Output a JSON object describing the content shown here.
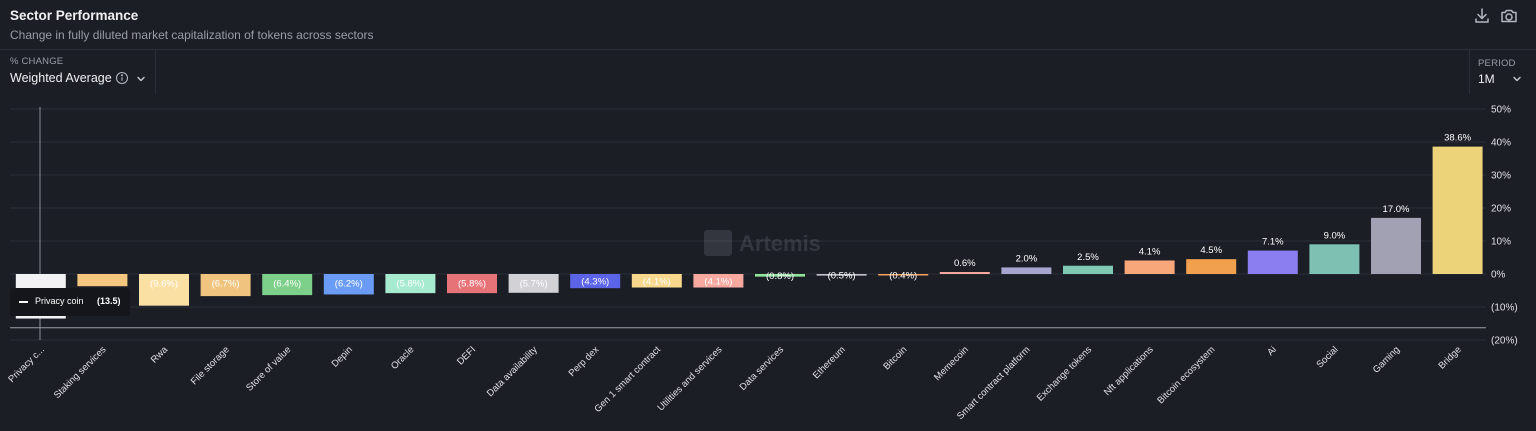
{
  "header": {
    "title": "Sector Performance",
    "subtitle": "Change in fully diluted market capitalization of tokens across sectors",
    "download_icon": "download-icon",
    "camera_icon": "camera-icon"
  },
  "controls": {
    "metric_label": "% CHANGE",
    "metric_value": "Weighted Average",
    "period_label": "PERIOD",
    "period_value": "1M"
  },
  "watermark": "Artemis",
  "tooltip": {
    "series": "Privacy coin",
    "value": "(13.5)"
  },
  "chart_data": {
    "type": "bar",
    "ylim": [
      -20,
      50
    ],
    "yticks": [
      50,
      40,
      30,
      20,
      10,
      0,
      -10,
      -20
    ],
    "ytick_labels": [
      "50%",
      "40%",
      "30%",
      "20%",
      "10%",
      "0%",
      "(10%)",
      "(20%)"
    ],
    "grid": true,
    "categories": [
      "Privacy c...",
      "Staking services",
      "Rwa",
      "File storage",
      "Store of value",
      "Depin",
      "Oracle",
      "DEFI",
      "Data availability",
      "Perp dex",
      "Gen 1 smart contract",
      "Utilities and services",
      "Data services",
      "Ethereum",
      "Bitcoin",
      "Memecoin",
      "Smart contract platform",
      "Exchange tokens",
      "Nft applications",
      "Bitcoin ecosystem",
      "Ai",
      "Social",
      "Gaming",
      "Bridge"
    ],
    "values": [
      -13.5,
      -3.7,
      -9.6,
      -6.7,
      -6.4,
      -6.2,
      -5.8,
      -5.8,
      -5.7,
      -4.3,
      -4.1,
      -4.1,
      -0.8,
      -0.5,
      -0.4,
      0.6,
      2.0,
      2.5,
      4.1,
      4.5,
      7.1,
      9.0,
      17.0,
      38.6
    ],
    "value_labels": [
      "",
      "",
      "(9.6%)",
      "(6.7%)",
      "(6.4%)",
      "(6.2%)",
      "(5.8%)",
      "(5.8%)",
      "(5.7%)",
      "(4.3%)",
      "(4.1%)",
      "(4.1%)",
      "(0.8%)",
      "(0.5%)",
      "(0.4%)",
      "0.6%",
      "2.0%",
      "2.5%",
      "4.1%",
      "4.5%",
      "7.1%",
      "9.0%",
      "17.0%",
      "38.6%"
    ],
    "colors": [
      "#f2f2f4",
      "#f5c77e",
      "#fbe0a4",
      "#f0c47e",
      "#7dd08a",
      "#6b9cf5",
      "#a6ebcf",
      "#e67378",
      "#d2d2d6",
      "#5b64e6",
      "#f7d88c",
      "#f7a9a0",
      "#8fe39b",
      "#bfc0c7",
      "#f4a35a",
      "#f7a9a0",
      "#a7a4ce",
      "#7ec9b4",
      "#f7a77a",
      "#f1a04d",
      "#8b7ef1",
      "#7ec0b2",
      "#a1a1b3",
      "#ecd37a"
    ]
  }
}
